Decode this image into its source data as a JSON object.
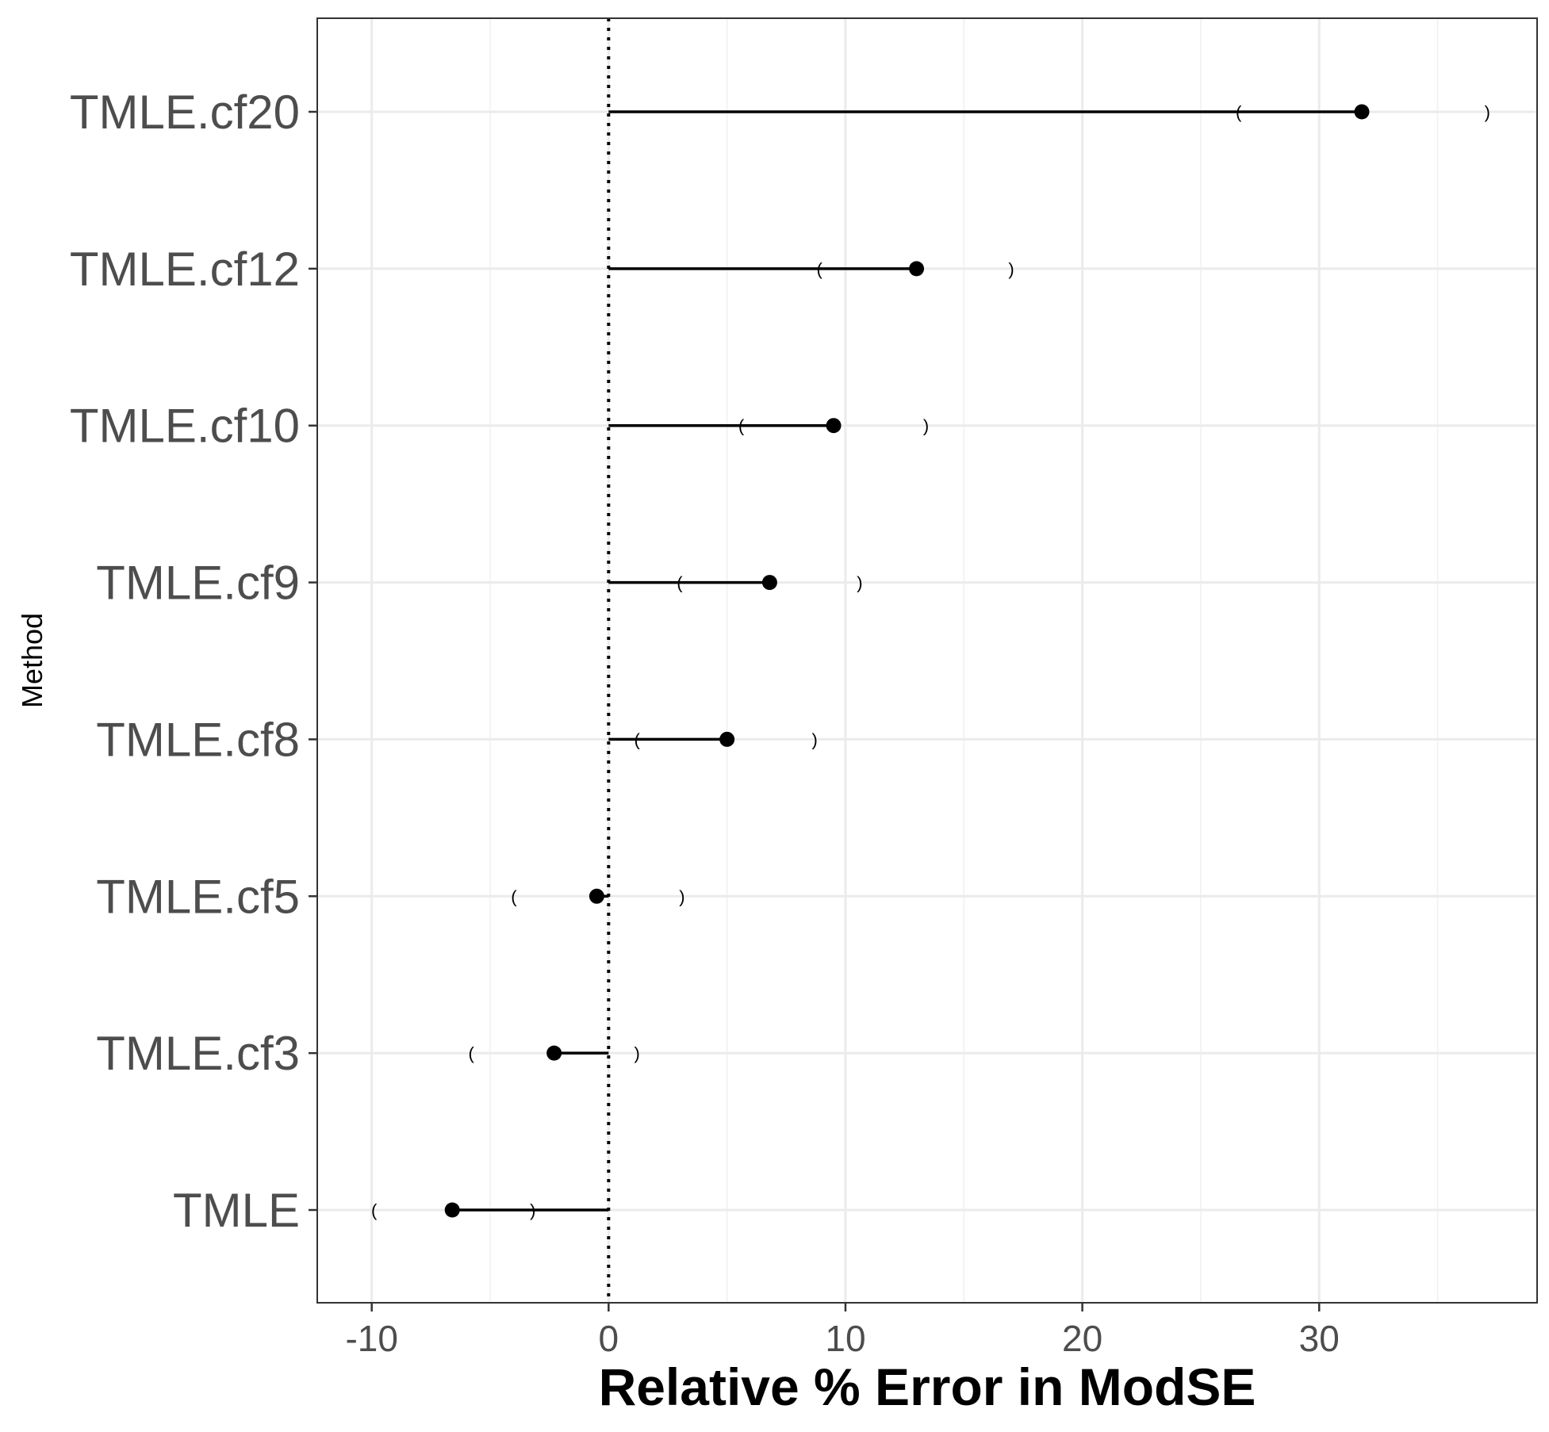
{
  "chart_data": {
    "type": "dot-and-whisker",
    "title": "",
    "xlabel": "Relative % Error in ModSE",
    "ylabel": "Method",
    "xlim": [
      -12.3,
      39.2
    ],
    "xticks": [
      -10,
      0,
      10,
      20,
      30
    ],
    "xtick_labels": [
      "-10",
      "0",
      "10",
      "20",
      "30"
    ],
    "reference_line": {
      "x": 0,
      "style": "dotted"
    },
    "grid": true,
    "ci_open_symbol": "(",
    "ci_close_symbol": ")",
    "categories": [
      "TMLE.cf20",
      "TMLE.cf12",
      "TMLE.cf10",
      "TMLE.cf9",
      "TMLE.cf8",
      "TMLE.cf5",
      "TMLE.cf3",
      "TMLE"
    ],
    "series": [
      {
        "estimate": [
          31.8,
          13.0,
          9.5,
          6.8,
          5.0,
          -0.5,
          -2.3,
          -6.6
        ],
        "ci_lower": [
          26.6,
          8.9,
          5.6,
          3.0,
          1.2,
          -4.0,
          -5.8,
          -9.9
        ],
        "ci_upper": [
          37.1,
          17.0,
          13.4,
          10.6,
          8.7,
          3.1,
          1.2,
          -3.2
        ]
      }
    ]
  }
}
